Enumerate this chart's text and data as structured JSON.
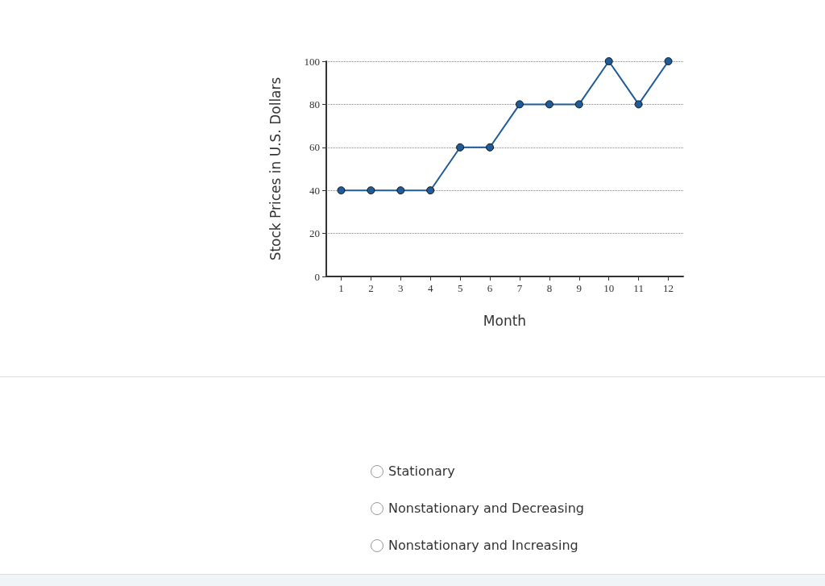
{
  "chart_data": {
    "type": "line",
    "xlabel": "Month",
    "ylabel": "Stock Prices in U.S. Dollars",
    "x": [
      1,
      2,
      3,
      4,
      5,
      6,
      7,
      8,
      9,
      10,
      11,
      12
    ],
    "xlim": [
      0.5,
      12.5
    ],
    "xticks": [
      1,
      2,
      3,
      4,
      5,
      6,
      7,
      8,
      9,
      10,
      11,
      12
    ],
    "series": [
      {
        "color": "#1f5b99",
        "values": [
          40,
          40,
          40,
          40,
          60,
          60,
          80,
          80,
          80,
          100,
          80,
          100
        ]
      }
    ],
    "ylim": [
      0,
      100
    ],
    "yticks": [
      0,
      20,
      40,
      60,
      80,
      100
    ],
    "grid": "y",
    "marker": "circle",
    "line_style": "solid",
    "annotations": [
      "Stationary",
      "Nonstationary and Decreasing",
      "Nonstationary and Increasing"
    ]
  }
}
